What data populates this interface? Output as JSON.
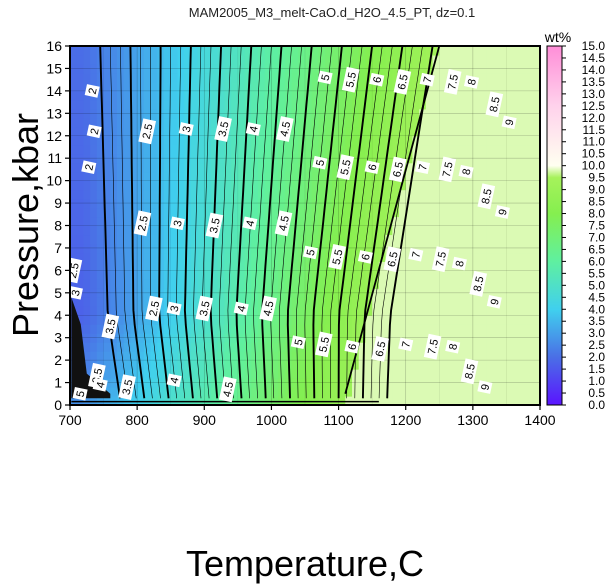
{
  "chart_data": {
    "type": "heatmap",
    "title": "MAM2005_M3_melt-CaO.d_H2O_4.5_PT, dz=0.1",
    "xlabel": "Temperature,C",
    "ylabel": "Pressure,kbar",
    "xlim": [
      700,
      1400
    ],
    "ylim": [
      0,
      16
    ],
    "xticks": [
      "700",
      "800",
      "900",
      "1000",
      "1100",
      "1200",
      "1300",
      "1400"
    ],
    "yticks": [
      "0",
      "1",
      "2",
      "3",
      "4",
      "5",
      "6",
      "7",
      "8",
      "9",
      "10",
      "11",
      "12",
      "13",
      "14",
      "15",
      "16"
    ],
    "grid": true,
    "colorbar": {
      "label": "wt%",
      "min": 0.0,
      "max": 15.0,
      "ticks": [
        "0.0",
        "0.5",
        "1.0",
        "1.5",
        "2.0",
        "2.5",
        "3.0",
        "3.5",
        "4.0",
        "4.5",
        "5.0",
        "5.5",
        "6.0",
        "6.5",
        "7.0",
        "7.5",
        "8.0",
        "8.5",
        "9.0",
        "9.5",
        "10.0",
        "10.5",
        "11.0",
        "11.5",
        "12.0",
        "12.5",
        "13.0",
        "13.5",
        "14.0",
        "14.5",
        "15.0"
      ],
      "stops": [
        {
          "v": 0.0,
          "c": "#5a14ff"
        },
        {
          "v": 2.0,
          "c": "#4a6fe6"
        },
        {
          "v": 4.0,
          "c": "#40d0ee"
        },
        {
          "v": 6.0,
          "c": "#5ff0a0"
        },
        {
          "v": 8.0,
          "c": "#85ef4f"
        },
        {
          "v": 9.5,
          "c": "#a6f25b"
        },
        {
          "v": 10.0,
          "c": "#fffff0"
        },
        {
          "v": 12.5,
          "c": "#ffd2ec"
        },
        {
          "v": 15.0,
          "c": "#ff8ed8"
        }
      ]
    },
    "saturated_region_value": 9.8,
    "contour_labels": [
      {
        "t": "2",
        "T": 733,
        "P": 14.0
      },
      {
        "t": "2",
        "T": 736,
        "P": 12.2
      },
      {
        "t": "2",
        "T": 728,
        "P": 10.6
      },
      {
        "t": "2.5",
        "T": 815,
        "P": 12.2
      },
      {
        "t": "2.5",
        "T": 808,
        "P": 8.1
      },
      {
        "t": "2.5",
        "T": 705,
        "P": 6.0
      },
      {
        "t": "2.5",
        "T": 825,
        "P": 4.3
      },
      {
        "t": "3",
        "T": 873,
        "P": 12.3
      },
      {
        "t": "3",
        "T": 860,
        "P": 8.1
      },
      {
        "t": "3",
        "T": 855,
        "P": 4.3
      },
      {
        "t": "3",
        "T": 708,
        "P": 5.0
      },
      {
        "t": "3.5",
        "T": 928,
        "P": 12.3
      },
      {
        "t": "3.5",
        "T": 915,
        "P": 8.0
      },
      {
        "t": "3.5",
        "T": 900,
        "P": 4.3
      },
      {
        "t": "3.5",
        "T": 760,
        "P": 3.5
      },
      {
        "t": "3.5",
        "T": 740,
        "P": 1.3
      },
      {
        "t": "3.5",
        "T": 785,
        "P": 0.8
      },
      {
        "t": "4",
        "T": 973,
        "P": 12.3
      },
      {
        "t": "4",
        "T": 968,
        "P": 8.1
      },
      {
        "t": "4",
        "T": 955,
        "P": 4.3
      },
      {
        "t": "4",
        "T": 855,
        "P": 1.1
      },
      {
        "t": "4",
        "T": 745,
        "P": 0.9
      },
      {
        "t": "4.5",
        "T": 1020,
        "P": 12.3
      },
      {
        "t": "4.5",
        "T": 1018,
        "P": 8.1
      },
      {
        "t": "4.5",
        "T": 995,
        "P": 4.3
      },
      {
        "t": "4.5",
        "T": 935,
        "P": 0.7
      },
      {
        "t": "5",
        "T": 1080,
        "P": 14.6
      },
      {
        "t": "5",
        "T": 1072,
        "P": 10.8
      },
      {
        "t": "5",
        "T": 1058,
        "P": 6.8
      },
      {
        "t": "5",
        "T": 1040,
        "P": 2.8
      },
      {
        "t": "5",
        "T": 715,
        "P": 0.5
      },
      {
        "t": "5.5",
        "T": 1118,
        "P": 14.5
      },
      {
        "t": "5.5",
        "T": 1110,
        "P": 10.6
      },
      {
        "t": "5.5",
        "T": 1098,
        "P": 6.6
      },
      {
        "t": "5.5",
        "T": 1078,
        "P": 2.7
      },
      {
        "t": "6",
        "T": 1157,
        "P": 14.5
      },
      {
        "t": "6",
        "T": 1150,
        "P": 10.6
      },
      {
        "t": "6",
        "T": 1140,
        "P": 6.6
      },
      {
        "t": "6",
        "T": 1120,
        "P": 2.6
      },
      {
        "t": "6.5",
        "T": 1195,
        "P": 14.4
      },
      {
        "t": "6.5",
        "T": 1188,
        "P": 10.5
      },
      {
        "t": "6.5",
        "T": 1180,
        "P": 6.5
      },
      {
        "t": "6.5",
        "T": 1162,
        "P": 2.5
      },
      {
        "t": "7",
        "T": 1232,
        "P": 14.5
      },
      {
        "t": "7",
        "T": 1225,
        "P": 10.6
      },
      {
        "t": "7",
        "T": 1215,
        "P": 6.7
      },
      {
        "t": "7",
        "T": 1200,
        "P": 2.7
      },
      {
        "t": "7.5",
        "T": 1270,
        "P": 14.4
      },
      {
        "t": "7.5",
        "T": 1262,
        "P": 10.5
      },
      {
        "t": "7.5",
        "T": 1252,
        "P": 6.5
      },
      {
        "t": "7.5",
        "T": 1240,
        "P": 2.6
      },
      {
        "t": "8",
        "T": 1298,
        "P": 14.4
      },
      {
        "t": "8",
        "T": 1290,
        "P": 10.4
      },
      {
        "t": "8",
        "T": 1280,
        "P": 6.3
      },
      {
        "t": "8",
        "T": 1270,
        "P": 2.6
      },
      {
        "t": "8.5",
        "T": 1332,
        "P": 13.4
      },
      {
        "t": "8.5",
        "T": 1320,
        "P": 9.3
      },
      {
        "t": "8.5",
        "T": 1308,
        "P": 5.4
      },
      {
        "t": "8.5",
        "T": 1295,
        "P": 1.5
      },
      {
        "t": "9",
        "T": 1354,
        "P": 12.6
      },
      {
        "t": "9",
        "T": 1344,
        "P": 8.6
      },
      {
        "t": "9",
        "T": 1332,
        "P": 4.6
      },
      {
        "t": "9",
        "T": 1318,
        "P": 0.8
      }
    ]
  }
}
